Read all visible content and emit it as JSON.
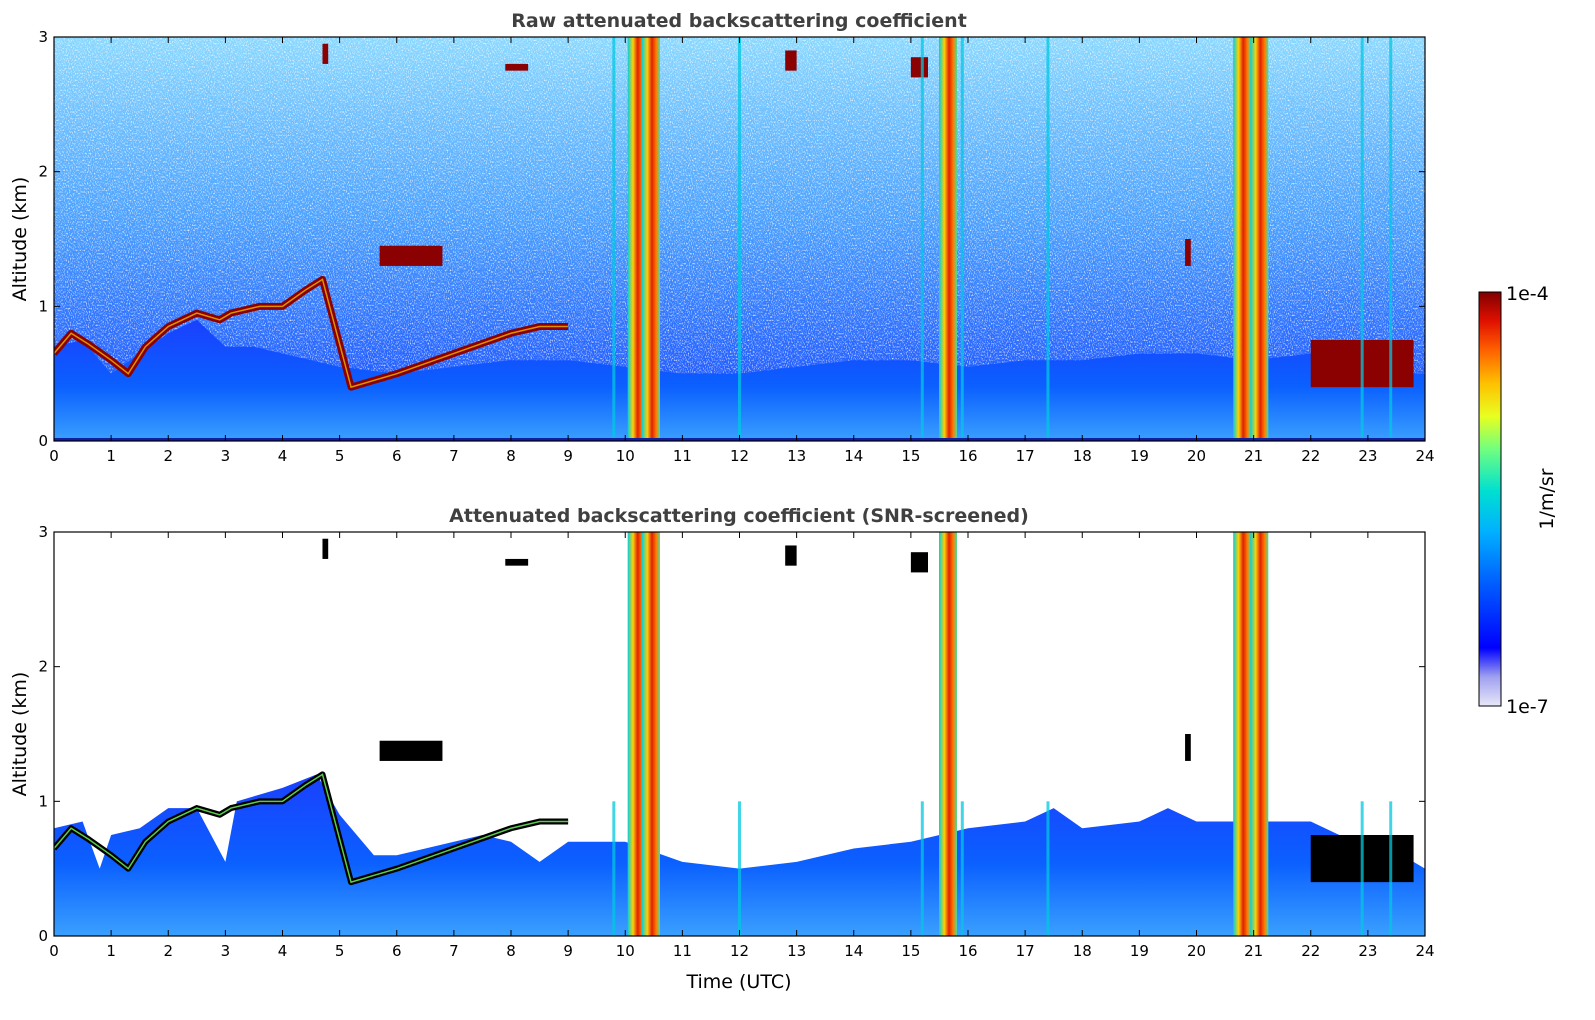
{
  "chart_data": [
    {
      "type": "heatmap",
      "title": "Raw attenuated backscattering coefficient",
      "xlabel": "",
      "ylabel": "Altitude (km)",
      "xlim": [
        0,
        24
      ],
      "ylim": [
        0,
        3
      ],
      "xticks": [
        "0",
        "1",
        "2",
        "3",
        "4",
        "5",
        "6",
        "7",
        "8",
        "9",
        "10",
        "11",
        "12",
        "13",
        "14",
        "15",
        "16",
        "17",
        "18",
        "19",
        "20",
        "21",
        "22",
        "23",
        "24"
      ],
      "yticks": [
        "0",
        "1",
        "2",
        "3"
      ],
      "screened": false,
      "boundary_layer_top_km": [
        [
          0,
          0.7
        ],
        [
          0.5,
          0.75
        ],
        [
          1,
          0.5
        ],
        [
          1.5,
          0.65
        ],
        [
          2,
          0.8
        ],
        [
          2.5,
          0.9
        ],
        [
          3,
          0.7
        ],
        [
          3.5,
          0.7
        ],
        [
          4,
          0.65
        ],
        [
          4.5,
          0.6
        ],
        [
          5,
          0.55
        ],
        [
          6,
          0.5
        ],
        [
          7,
          0.55
        ],
        [
          8,
          0.6
        ],
        [
          9,
          0.6
        ],
        [
          10,
          0.55
        ],
        [
          11,
          0.5
        ],
        [
          12,
          0.5
        ],
        [
          13,
          0.55
        ],
        [
          14,
          0.6
        ],
        [
          15,
          0.6
        ],
        [
          16,
          0.55
        ],
        [
          17,
          0.6
        ],
        [
          18,
          0.6
        ],
        [
          19,
          0.65
        ],
        [
          20,
          0.65
        ],
        [
          21,
          0.6
        ],
        [
          22,
          0.65
        ],
        [
          23,
          0.55
        ],
        [
          23.8,
          0.5
        ]
      ],
      "aerosol_layer_altitude_km": [
        [
          0,
          0.65
        ],
        [
          0.3,
          0.8
        ],
        [
          0.6,
          0.72
        ],
        [
          1,
          0.6
        ],
        [
          1.3,
          0.5
        ],
        [
          1.6,
          0.7
        ],
        [
          2,
          0.85
        ],
        [
          2.5,
          0.95
        ],
        [
          2.9,
          0.9
        ],
        [
          3.1,
          0.95
        ],
        [
          3.6,
          1.0
        ],
        [
          4,
          1.0
        ],
        [
          4.4,
          1.12
        ],
        [
          4.7,
          1.2
        ],
        [
          5.2,
          0.4
        ],
        [
          6,
          0.5
        ],
        [
          7,
          0.65
        ],
        [
          8,
          0.8
        ],
        [
          8.5,
          0.85
        ],
        [
          9,
          0.85
        ]
      ],
      "cloud_patches_km": [
        {
          "x": [
            5.7,
            6.8
          ],
          "y": [
            1.3,
            1.45
          ]
        },
        {
          "x": [
            7.9,
            8.3
          ],
          "y": [
            2.75,
            2.8
          ]
        },
        {
          "x": [
            4.7,
            4.8
          ],
          "y": [
            2.8,
            2.95
          ]
        },
        {
          "x": [
            12.8,
            13.0
          ],
          "y": [
            2.75,
            2.9
          ]
        },
        {
          "x": [
            15.0,
            15.3
          ],
          "y": [
            2.7,
            2.85
          ]
        },
        {
          "x": [
            19.8,
            19.9
          ],
          "y": [
            1.3,
            1.5
          ]
        },
        {
          "x": [
            22.0,
            23.8
          ],
          "y": [
            0.4,
            0.75
          ]
        }
      ],
      "precipitation_columns_hour": [
        10.2,
        10.45,
        15.65,
        20.8,
        21.1
      ],
      "thin_columns_hour": [
        9.8,
        12.0,
        15.2,
        15.9,
        17.4,
        22.9,
        23.4
      ]
    },
    {
      "type": "heatmap",
      "title": "Attenuated backscattering coefficient (SNR-screened)",
      "xlabel": "Time (UTC)",
      "ylabel": "Altitude (km)",
      "xlim": [
        0,
        24
      ],
      "ylim": [
        0,
        3
      ],
      "xticks": [
        "0",
        "1",
        "2",
        "3",
        "4",
        "5",
        "6",
        "7",
        "8",
        "9",
        "10",
        "11",
        "12",
        "13",
        "14",
        "15",
        "16",
        "17",
        "18",
        "19",
        "20",
        "21",
        "22",
        "23",
        "24"
      ],
      "yticks": [
        "0",
        "1",
        "2",
        "3"
      ],
      "screened": true,
      "signal_top_km": [
        [
          0,
          0.8
        ],
        [
          0.5,
          0.85
        ],
        [
          0.8,
          0.5
        ],
        [
          1,
          0.75
        ],
        [
          1.5,
          0.8
        ],
        [
          2,
          0.95
        ],
        [
          2.5,
          0.95
        ],
        [
          3,
          0.55
        ],
        [
          3.2,
          1.0
        ],
        [
          4,
          1.1
        ],
        [
          4.6,
          1.2
        ],
        [
          5,
          0.9
        ],
        [
          5.6,
          0.6
        ],
        [
          6,
          0.6
        ],
        [
          7,
          0.7
        ],
        [
          7.5,
          0.75
        ],
        [
          8,
          0.7
        ],
        [
          8.5,
          0.55
        ],
        [
          9,
          0.7
        ],
        [
          10,
          0.7
        ],
        [
          11,
          0.55
        ],
        [
          12,
          0.5
        ],
        [
          13,
          0.55
        ],
        [
          14,
          0.65
        ],
        [
          15,
          0.7
        ],
        [
          16,
          0.8
        ],
        [
          17,
          0.85
        ],
        [
          17.5,
          0.95
        ],
        [
          18,
          0.8
        ],
        [
          19,
          0.85
        ],
        [
          19.5,
          0.95
        ],
        [
          20,
          0.85
        ],
        [
          21,
          0.85
        ],
        [
          22,
          0.85
        ],
        [
          22.5,
          0.75
        ],
        [
          23,
          0.7
        ],
        [
          23.5,
          0.65
        ],
        [
          23.8,
          0.55
        ]
      ]
    }
  ],
  "colorbar": {
    "label": "1/m/sr",
    "max_label": "1e-4",
    "min_label": "1e-7",
    "scale": "log",
    "colormap": [
      "#e8e8f8",
      "#b0b0f0",
      "#0000ff",
      "#0060ff",
      "#00a0ff",
      "#00e0e0",
      "#60ff90",
      "#e0ff20",
      "#ffc000",
      "#ff6000",
      "#e01000",
      "#800000"
    ]
  }
}
